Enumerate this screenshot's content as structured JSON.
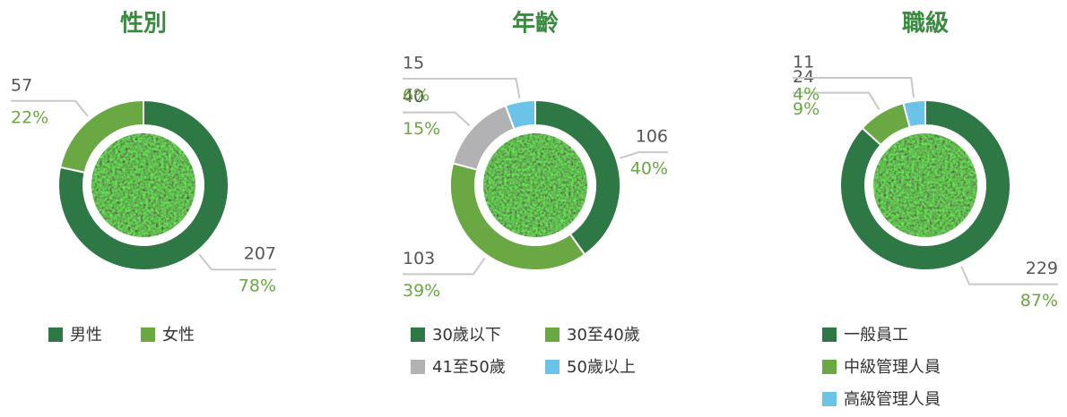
{
  "chart_data": [
    {
      "type": "donut",
      "title": "性別",
      "categories": [
        "男性",
        "女性"
      ],
      "values": [
        207,
        57
      ],
      "percent_labels": [
        "78%",
        "22%"
      ],
      "colors": [
        "#2e7845",
        "#6aa843"
      ]
    },
    {
      "type": "donut",
      "title": "年齡",
      "categories": [
        "30歲以下",
        "30至40歲",
        "41至50歲",
        "50歲以上"
      ],
      "values": [
        106,
        103,
        40,
        15
      ],
      "percent_labels": [
        "40%",
        "39%",
        "15%",
        "6%"
      ],
      "colors": [
        "#2e7845",
        "#6aa843",
        "#b2b2b4",
        "#6cc3e8"
      ]
    },
    {
      "type": "donut",
      "title": "職級",
      "categories": [
        "一般員工",
        "中級管理人員",
        "高級管理人員"
      ],
      "values": [
        229,
        24,
        11
      ],
      "percent_labels": [
        "87%",
        "9%",
        "4%"
      ],
      "colors": [
        "#2e7845",
        "#6aa843",
        "#6cc3e8"
      ]
    }
  ]
}
